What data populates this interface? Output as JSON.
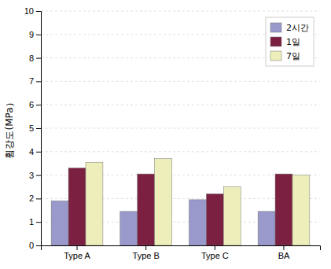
{
  "chart_data": {
    "type": "bar",
    "categories": [
      "Type A",
      "Type B",
      "Type C",
      "BA"
    ],
    "series": [
      {
        "name": "2시간",
        "color": "#9999CC",
        "values": [
          1.9,
          1.45,
          1.95,
          1.45
        ]
      },
      {
        "name": "1일",
        "color": "#7B2040",
        "values": [
          3.3,
          3.05,
          2.2,
          3.05
        ]
      },
      {
        "name": "7일",
        "color": "#EEEEBB",
        "values": [
          3.55,
          3.7,
          2.5,
          3.0
        ]
      }
    ],
    "ylabel": "휨강도(MPa）",
    "ylim": [
      0,
      10
    ],
    "yticks": [
      0,
      1,
      2,
      3,
      4,
      5,
      6,
      7,
      8,
      9,
      10
    ],
    "grid": true,
    "legend": "upper right"
  }
}
